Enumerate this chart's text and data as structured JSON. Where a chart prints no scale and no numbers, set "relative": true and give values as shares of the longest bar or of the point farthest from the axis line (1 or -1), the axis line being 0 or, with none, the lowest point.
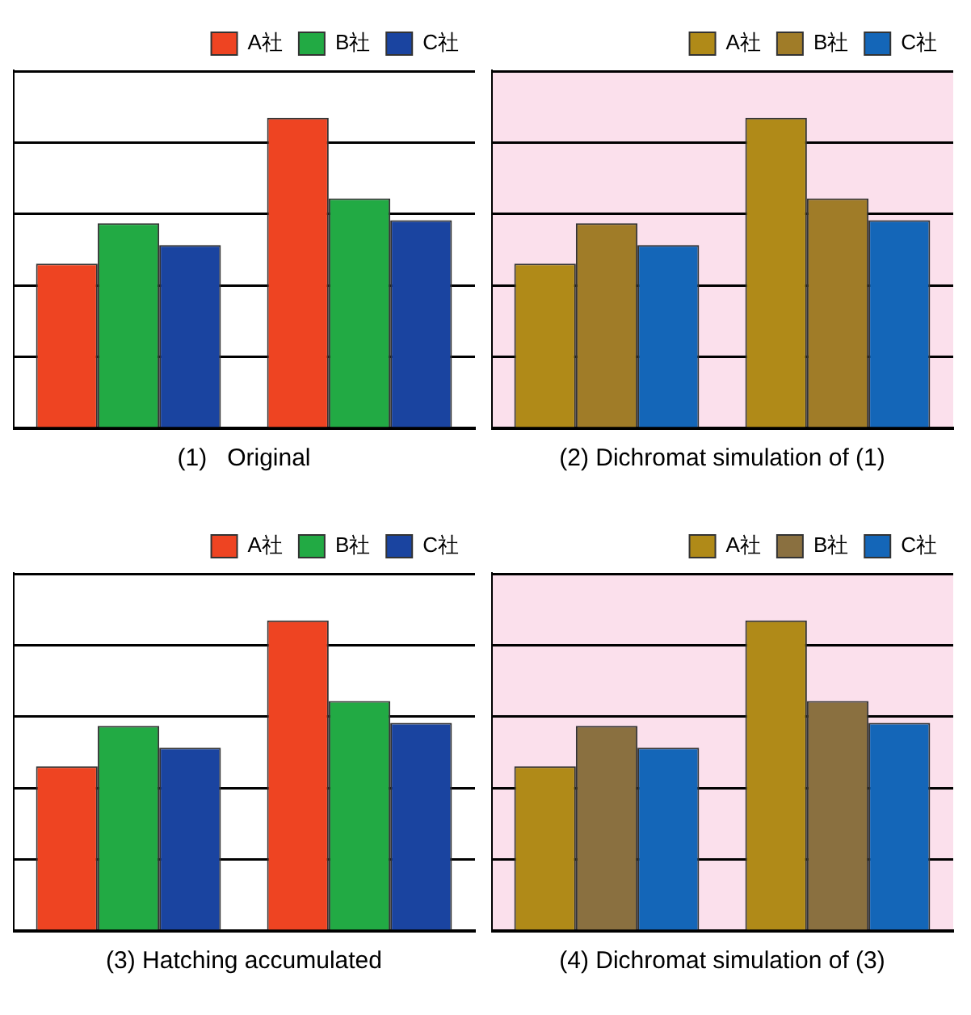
{
  "chart_data": [
    {
      "type": "bar",
      "title": "(1)   Original",
      "categories": [
        null,
        null
      ],
      "relative": true,
      "grid": "y",
      "legend": "top right",
      "series": [
        {
          "name": "A社",
          "color": "#ee4422",
          "values": [
            0.53,
            1
          ]
        },
        {
          "name": "B社",
          "color": "#22aa44",
          "values": [
            0.66,
            0.74
          ]
        },
        {
          "name": "C社",
          "color": "#1a44a0",
          "values": [
            0.59,
            0.67
          ]
        }
      ]
    },
    {
      "type": "bar",
      "title": "(2) Dichromat simulation of (1)",
      "categories": [
        null,
        null
      ],
      "relative": true,
      "grid": "y",
      "legend": "top right",
      "series": [
        {
          "name": "A社",
          "color": "#b08a18",
          "values": [
            0.53,
            1
          ]
        },
        {
          "name": "B社",
          "color": "#a07c28",
          "values": [
            0.66,
            0.74
          ]
        },
        {
          "name": "C社",
          "color": "#1466b8",
          "values": [
            0.59,
            0.67
          ]
        }
      ]
    },
    {
      "type": "bar",
      "title": "(3) Hatching accumulated",
      "categories": [
        null,
        null
      ],
      "relative": true,
      "grid": "y",
      "legend": "top right",
      "series": [
        {
          "name": "A社",
          "color": "#ee4422",
          "values": [
            0.53,
            1
          ]
        },
        {
          "name": "B社",
          "color": "#22aa44",
          "values": [
            0.66,
            0.74
          ]
        },
        {
          "name": "C社",
          "color": "#1a44a0",
          "values": [
            0.59,
            0.67
          ]
        }
      ]
    },
    {
      "type": "bar",
      "title": "(4) Dichromat simulation of (3)",
      "categories": [
        null,
        null
      ],
      "relative": true,
      "grid": "y",
      "legend": "top right",
      "series": [
        {
          "name": "A社",
          "color": "#b08a18",
          "values": [
            0.53,
            1
          ]
        },
        {
          "name": "B社",
          "color": "#8a7040",
          "values": [
            0.66,
            0.74
          ]
        },
        {
          "name": "C社",
          "color": "#1466b8",
          "values": [
            0.59,
            0.67
          ]
        }
      ]
    }
  ]
}
